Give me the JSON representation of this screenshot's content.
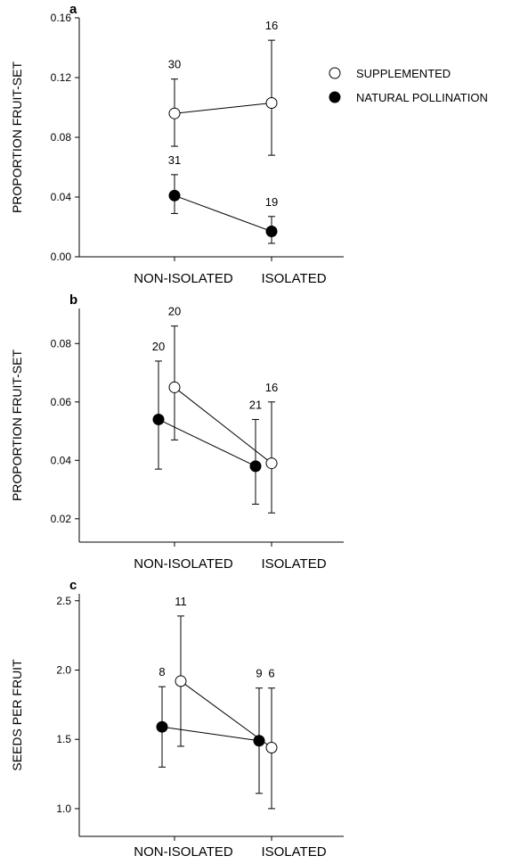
{
  "chart_data": [
    {
      "panel": "a",
      "type": "scatter",
      "ylabel": "PROPORTION FRUIT-SET",
      "categories": [
        "NON-ISOLATED",
        "ISOLATED"
      ],
      "ylim": [
        0,
        0.16
      ],
      "yticks": [
        "0.00",
        "0.04",
        "0.08",
        "0.12",
        "0.16"
      ],
      "series": [
        {
          "name": "SUPPLEMENTED",
          "fill": "#ffffff",
          "x": [
            "NON-ISOLATED",
            "ISOLATED"
          ],
          "y": [
            0.096,
            0.103
          ],
          "yerr_low": [
            0.074,
            0.068
          ],
          "yerr_high": [
            0.119,
            0.145
          ],
          "n": [
            "30",
            "16"
          ]
        },
        {
          "name": "NATURAL POLLINATION",
          "fill": "#000000",
          "x": [
            "NON-ISOLATED",
            "ISOLATED"
          ],
          "y": [
            0.041,
            0.017
          ],
          "yerr_low": [
            0.029,
            0.009
          ],
          "yerr_high": [
            0.055,
            0.027
          ],
          "n": [
            "31",
            "19"
          ]
        }
      ],
      "legend": {
        "position": "top-right",
        "entries": [
          {
            "label": "SUPPLEMENTED",
            "fill": "#ffffff"
          },
          {
            "label": "NATURAL POLLINATION",
            "fill": "#000000"
          }
        ]
      }
    },
    {
      "panel": "b",
      "type": "scatter",
      "ylabel": "PROPORTION FRUIT-SET",
      "categories": [
        "NON-ISOLATED",
        "ISOLATED"
      ],
      "ylim": [
        0.012,
        0.092
      ],
      "yticks": [
        "0.02",
        "0.04",
        "0.06",
        "0.08"
      ],
      "series": [
        {
          "name": "SUPPLEMENTED",
          "fill": "#ffffff",
          "x": [
            "NON-ISOLATED",
            "ISOLATED"
          ],
          "y": [
            0.065,
            0.039
          ],
          "yerr_low": [
            0.047,
            0.022
          ],
          "yerr_high": [
            0.086,
            0.06
          ],
          "n": [
            "20",
            "16"
          ]
        },
        {
          "name": "NATURAL POLLINATION",
          "fill": "#000000",
          "x": [
            "NON-ISOLATED",
            "ISOLATED"
          ],
          "y": [
            0.054,
            0.038
          ],
          "yerr_low": [
            0.037,
            0.025
          ],
          "yerr_high": [
            0.074,
            0.054
          ],
          "n": [
            "20",
            "21"
          ]
        }
      ]
    },
    {
      "panel": "c",
      "type": "scatter",
      "ylabel": "SEEDS PER FRUIT",
      "categories": [
        "NON-ISOLATED",
        "ISOLATED"
      ],
      "ylim": [
        0.8,
        2.55
      ],
      "yticks": [
        "1.0",
        "1.5",
        "2.0",
        "2.5"
      ],
      "series": [
        {
          "name": "SUPPLEMENTED",
          "fill": "#ffffff",
          "x": [
            "NON-ISOLATED",
            "ISOLATED"
          ],
          "y": [
            1.92,
            1.44
          ],
          "yerr_low": [
            1.45,
            1.0
          ],
          "yerr_high": [
            2.39,
            1.87
          ],
          "n": [
            "11",
            "6"
          ]
        },
        {
          "name": "NATURAL POLLINATION",
          "fill": "#000000",
          "x": [
            "NON-ISOLATED",
            "ISOLATED"
          ],
          "y": [
            1.59,
            1.49
          ],
          "yerr_low": [
            1.3,
            1.11
          ],
          "yerr_high": [
            1.88,
            1.87
          ],
          "n": [
            "8",
            "9"
          ]
        }
      ]
    }
  ]
}
